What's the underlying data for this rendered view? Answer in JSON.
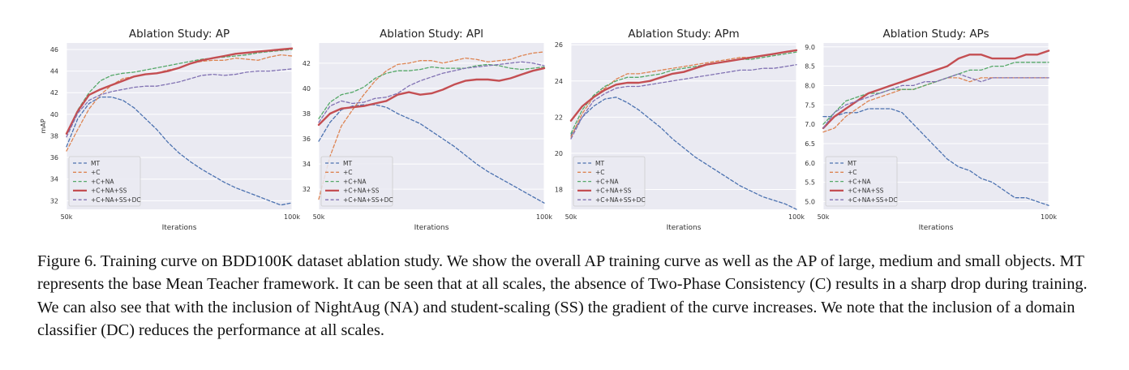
{
  "figure": {
    "caption": "Figure 6. Training curve on BDD100K dataset ablation study. We show the overall AP training curve as well as the AP of large, medium and small objects. MT represents the base Mean Teacher framework. It can be seen that at all scales, the absence of Two-Phase Consistency (C) results in a sharp drop during training. We can also see that with the inclusion of NightAug (NA) and student-scaling (SS) the gradient of the curve increases. We note that the inclusion of a domain classifier (DC) reduces the performance at all scales."
  },
  "colors": {
    "MT": "#4c72b0",
    "+C": "#dd8452",
    "+C+NA": "#55a868",
    "+C+NA+SS": "#c44e52",
    "+C+NA+SS+DC": "#8172b3",
    "plot_bg": "#eaeaf2",
    "grid": "#ffffff"
  },
  "chart_data": [
    {
      "type": "line",
      "title": "Ablation Study: AP",
      "xlabel": "Iterations",
      "ylabel": "mAP",
      "xlim": [
        50,
        100
      ],
      "ylim": [
        31.2,
        46.6
      ],
      "xticks": [
        50,
        100
      ],
      "xticklabels": [
        "50k",
        "100k"
      ],
      "yticks": [
        32,
        34,
        36,
        38,
        40,
        42,
        44,
        46
      ],
      "yticklabels": [
        "32",
        "34",
        "36",
        "38",
        "40",
        "42",
        "44",
        "46"
      ],
      "grid": true,
      "legend": "lower left",
      "x": [
        50,
        52.5,
        55,
        57.5,
        60,
        62.5,
        65,
        67.5,
        70,
        72.5,
        75,
        77.5,
        80,
        82.5,
        85,
        87.5,
        90,
        92.5,
        95,
        97.5,
        100
      ],
      "series": [
        {
          "name": "MT",
          "style": "dashed",
          "values": [
            37.0,
            39.6,
            41.0,
            41.6,
            41.6,
            41.3,
            40.6,
            39.6,
            38.6,
            37.4,
            36.4,
            35.6,
            34.9,
            34.3,
            33.7,
            33.2,
            32.8,
            32.4,
            32.0,
            31.6,
            31.8
          ]
        },
        {
          "name": "+C",
          "style": "dashed",
          "values": [
            36.6,
            38.6,
            40.5,
            41.8,
            42.7,
            43.3,
            43.5,
            43.7,
            43.8,
            44.1,
            44.3,
            44.7,
            44.9,
            45.0,
            45.0,
            45.2,
            45.1,
            45.0,
            45.3,
            45.5,
            45.4
          ]
        },
        {
          "name": "+C+NA",
          "style": "dashed",
          "values": [
            38.2,
            40.4,
            42.0,
            43.1,
            43.6,
            43.8,
            43.9,
            44.1,
            44.3,
            44.5,
            44.7,
            44.9,
            45.1,
            45.2,
            45.3,
            45.4,
            45.5,
            45.7,
            45.8,
            45.9,
            46.0
          ]
        },
        {
          "name": "+C+NA+SS",
          "style": "solid",
          "values": [
            38.2,
            40.3,
            41.8,
            42.3,
            42.7,
            43.1,
            43.5,
            43.7,
            43.8,
            44.0,
            44.3,
            44.7,
            45.0,
            45.2,
            45.4,
            45.6,
            45.7,
            45.8,
            45.9,
            46.0,
            46.1
          ]
        },
        {
          "name": "+C+NA+SS+DC",
          "style": "dashed",
          "values": [
            37.9,
            40.1,
            41.3,
            41.8,
            42.1,
            42.3,
            42.5,
            42.6,
            42.6,
            42.8,
            43.0,
            43.3,
            43.6,
            43.7,
            43.6,
            43.7,
            43.9,
            44.0,
            44.0,
            44.1,
            44.2
          ]
        }
      ]
    },
    {
      "type": "line",
      "title": "Ablation Study: APl",
      "xlabel": "Iterations",
      "ylabel": "",
      "xlim": [
        50,
        100
      ],
      "ylim": [
        30.4,
        43.6
      ],
      "xticks": [
        50,
        100
      ],
      "xticklabels": [
        "50k",
        "100k"
      ],
      "yticks": [
        32,
        34,
        36,
        38,
        40,
        42
      ],
      "yticklabels": [
        "32",
        "34",
        "36",
        "38",
        "40",
        "42"
      ],
      "grid": true,
      "legend": "lower left",
      "x": [
        50,
        52.5,
        55,
        57.5,
        60,
        62.5,
        65,
        67.5,
        70,
        72.5,
        75,
        77.5,
        80,
        82.5,
        85,
        87.5,
        90,
        92.5,
        95,
        97.5,
        100
      ],
      "series": [
        {
          "name": "MT",
          "style": "dashed",
          "values": [
            35.8,
            37.3,
            38.3,
            38.6,
            38.7,
            38.7,
            38.5,
            38.0,
            37.6,
            37.2,
            36.6,
            36.0,
            35.4,
            34.7,
            34.0,
            33.4,
            32.9,
            32.4,
            31.9,
            31.4,
            30.9
          ]
        },
        {
          "name": "+C",
          "style": "dashed",
          "values": [
            31.2,
            34.6,
            37.0,
            38.3,
            39.5,
            40.6,
            41.4,
            41.9,
            42.0,
            42.2,
            42.2,
            42.0,
            42.2,
            42.4,
            42.3,
            42.1,
            42.2,
            42.3,
            42.6,
            42.8,
            42.9
          ]
        },
        {
          "name": "+C+NA",
          "style": "dashed",
          "values": [
            37.6,
            38.9,
            39.5,
            39.7,
            40.1,
            40.8,
            41.2,
            41.4,
            41.4,
            41.5,
            41.7,
            41.6,
            41.6,
            41.6,
            41.8,
            41.9,
            41.8,
            41.6,
            41.5,
            41.6,
            41.7
          ]
        },
        {
          "name": "+C+NA+SS",
          "style": "solid",
          "values": [
            37.1,
            38.0,
            38.4,
            38.5,
            38.6,
            38.8,
            39.0,
            39.5,
            39.7,
            39.5,
            39.6,
            39.9,
            40.3,
            40.6,
            40.7,
            40.7,
            40.6,
            40.8,
            41.1,
            41.4,
            41.6
          ]
        },
        {
          "name": "+C+NA+SS+DC",
          "style": "dashed",
          "values": [
            37.3,
            38.6,
            39.0,
            38.8,
            38.9,
            39.2,
            39.3,
            39.6,
            40.2,
            40.6,
            40.9,
            41.2,
            41.4,
            41.6,
            41.7,
            41.8,
            41.9,
            42.0,
            42.1,
            42.0,
            41.8
          ]
        }
      ]
    },
    {
      "type": "line",
      "title": "Ablation Study: APm",
      "xlabel": "Iterations",
      "ylabel": "",
      "xlim": [
        50,
        100
      ],
      "ylim": [
        16.9,
        26.1
      ],
      "xticks": [
        50,
        100
      ],
      "xticklabels": [
        "50k",
        "100k"
      ],
      "yticks": [
        18,
        20,
        22,
        24,
        26
      ],
      "yticklabels": [
        "18",
        "20",
        "22",
        "24",
        "26"
      ],
      "grid": true,
      "legend": "lower left",
      "x": [
        50,
        52.5,
        55,
        57.5,
        60,
        62.5,
        65,
        67.5,
        70,
        72.5,
        75,
        77.5,
        80,
        82.5,
        85,
        87.5,
        90,
        92.5,
        95,
        97.5,
        100
      ],
      "series": [
        {
          "name": "MT",
          "style": "dashed",
          "values": [
            21.0,
            22.0,
            22.6,
            23.0,
            23.1,
            22.8,
            22.4,
            21.9,
            21.4,
            20.8,
            20.3,
            19.8,
            19.4,
            19.0,
            18.6,
            18.2,
            17.9,
            17.6,
            17.4,
            17.2,
            16.9
          ]
        },
        {
          "name": "+C",
          "style": "dashed",
          "values": [
            20.9,
            22.2,
            23.1,
            23.6,
            24.1,
            24.4,
            24.4,
            24.5,
            24.6,
            24.7,
            24.8,
            24.9,
            25.0,
            25.1,
            25.2,
            25.3,
            25.3,
            25.4,
            25.5,
            25.6,
            25.7
          ]
        },
        {
          "name": "+C+NA",
          "style": "dashed",
          "values": [
            21.1,
            22.4,
            23.2,
            23.7,
            24.0,
            24.2,
            24.2,
            24.3,
            24.4,
            24.6,
            24.7,
            24.8,
            24.9,
            25.0,
            25.1,
            25.2,
            25.2,
            25.3,
            25.4,
            25.5,
            25.6
          ]
        },
        {
          "name": "+C+NA+SS",
          "style": "solid",
          "values": [
            21.8,
            22.6,
            23.1,
            23.5,
            23.8,
            23.9,
            23.9,
            24.0,
            24.2,
            24.4,
            24.5,
            24.7,
            24.9,
            25.0,
            25.1,
            25.2,
            25.3,
            25.4,
            25.5,
            25.6,
            25.7
          ]
        },
        {
          "name": "+C+NA+SS+DC",
          "style": "dashed",
          "values": [
            20.8,
            22.0,
            22.9,
            23.3,
            23.6,
            23.7,
            23.7,
            23.8,
            23.9,
            24.0,
            24.1,
            24.2,
            24.3,
            24.4,
            24.5,
            24.6,
            24.6,
            24.7,
            24.7,
            24.8,
            24.9
          ]
        }
      ]
    },
    {
      "type": "line",
      "title": "Ablation Study: APs",
      "xlabel": "Iterations",
      "ylabel": "",
      "xlim": [
        50,
        100
      ],
      "ylim": [
        4.8,
        9.1
      ],
      "xticks": [
        50,
        100
      ],
      "xticklabels": [
        "50k",
        "100k"
      ],
      "yticks": [
        5.0,
        5.5,
        6.0,
        6.5,
        7.0,
        7.5,
        8.0,
        8.5,
        9.0
      ],
      "yticklabels": [
        "5.0",
        "5.5",
        "6.0",
        "6.5",
        "7.0",
        "7.5",
        "8.0",
        "8.5",
        "9.0"
      ],
      "grid": true,
      "legend": "lower left",
      "x": [
        50,
        52.5,
        55,
        57.5,
        60,
        62.5,
        65,
        67.5,
        70,
        72.5,
        75,
        77.5,
        80,
        82.5,
        85,
        87.5,
        90,
        92.5,
        95,
        97.5,
        100
      ],
      "series": [
        {
          "name": "MT",
          "style": "dashed",
          "values": [
            7.2,
            7.2,
            7.3,
            7.3,
            7.4,
            7.4,
            7.4,
            7.3,
            7.0,
            6.7,
            6.4,
            6.1,
            5.9,
            5.8,
            5.6,
            5.5,
            5.3,
            5.1,
            5.1,
            5.0,
            4.9
          ]
        },
        {
          "name": "+C",
          "style": "dashed",
          "values": [
            6.8,
            6.9,
            7.2,
            7.4,
            7.6,
            7.7,
            7.8,
            7.9,
            7.9,
            8.0,
            8.1,
            8.2,
            8.2,
            8.1,
            8.2,
            8.2,
            8.2,
            8.2,
            8.2,
            8.2,
            8.2
          ]
        },
        {
          "name": "+C+NA",
          "style": "dashed",
          "values": [
            7.0,
            7.3,
            7.6,
            7.7,
            7.8,
            7.8,
            7.9,
            7.9,
            7.9,
            8.0,
            8.1,
            8.2,
            8.3,
            8.4,
            8.4,
            8.5,
            8.5,
            8.6,
            8.6,
            8.6,
            8.6
          ]
        },
        {
          "name": "+C+NA+SS",
          "style": "solid",
          "values": [
            6.9,
            7.2,
            7.4,
            7.6,
            7.8,
            7.9,
            8.0,
            8.1,
            8.2,
            8.3,
            8.4,
            8.5,
            8.7,
            8.8,
            8.8,
            8.7,
            8.7,
            8.7,
            8.8,
            8.8,
            8.9
          ]
        },
        {
          "name": "+C+NA+SS+DC",
          "style": "dashed",
          "values": [
            6.9,
            7.3,
            7.5,
            7.6,
            7.7,
            7.8,
            7.9,
            8.0,
            8.0,
            8.1,
            8.1,
            8.2,
            8.3,
            8.2,
            8.1,
            8.2,
            8.2,
            8.2,
            8.2,
            8.2,
            8.2
          ]
        }
      ]
    }
  ]
}
